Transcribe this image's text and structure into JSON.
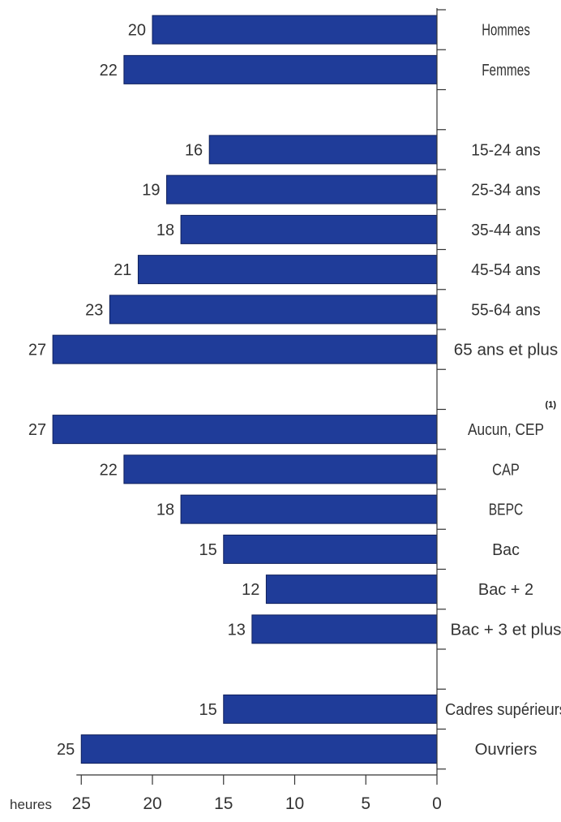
{
  "chart_data": {
    "type": "bar",
    "orientation": "horizontal",
    "x_reversed": true,
    "categories": [
      "Hommes",
      "Femmes",
      "",
      "15-24 ans",
      "25-34 ans",
      "35-44 ans",
      "45-54 ans",
      "55-64 ans",
      "65 ans et plus",
      "",
      "Aucun, CEP",
      "CAP",
      "BEPC",
      "Bac",
      "Bac + 2",
      "Bac + 3 et plus",
      "",
      "Cadres supérieurs",
      "Ouvriers"
    ],
    "values": [
      20,
      22,
      null,
      16,
      19,
      18,
      21,
      23,
      27,
      null,
      27,
      22,
      18,
      15,
      12,
      13,
      null,
      15,
      25
    ],
    "note_marker": "(1)",
    "xlabel": "heures",
    "x_ticks": [
      25,
      20,
      15,
      10,
      5,
      0
    ],
    "xlim": [
      0,
      27
    ],
    "grid": false,
    "bar_color": "#1f3c99"
  }
}
